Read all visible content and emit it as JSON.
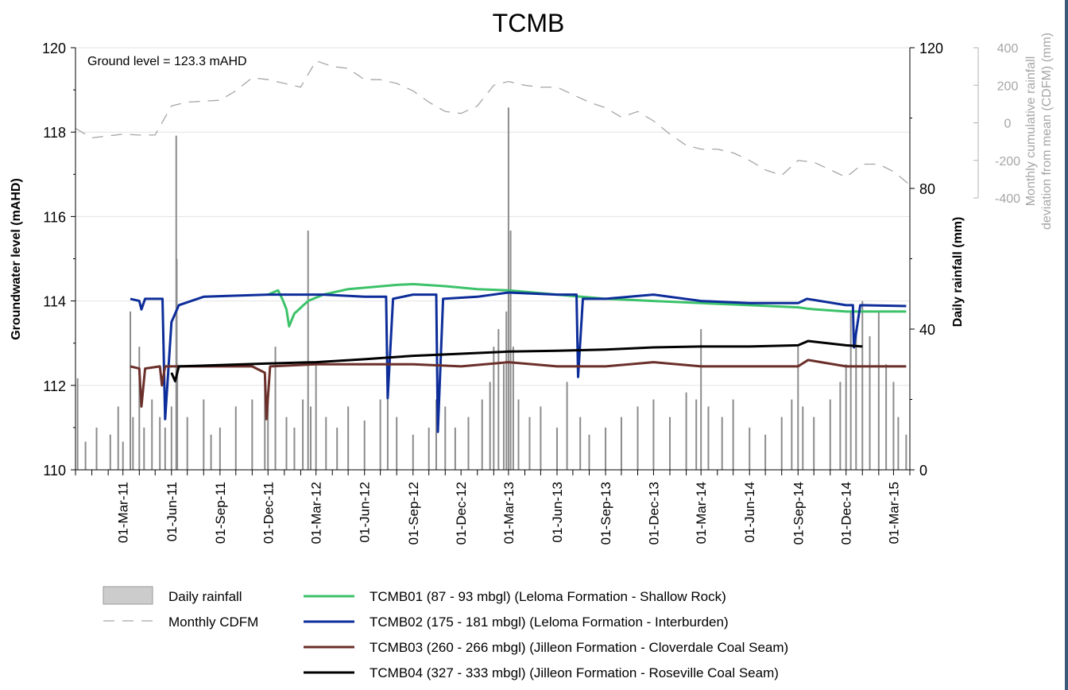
{
  "chart_data": {
    "type": "line",
    "title": "TCMB",
    "annotation": "Ground level = 123.3 mAHD",
    "y_left": {
      "label": "Groundwater level (mAHD)",
      "range": [
        110,
        120
      ],
      "ticks": [
        "110",
        "112",
        "114",
        "116",
        "118",
        "120"
      ]
    },
    "y_right": {
      "label": "Daily rainfall (mm)",
      "range": [
        0,
        120
      ],
      "ticks": [
        "0",
        "40",
        "80",
        "120"
      ]
    },
    "y_right2": {
      "label_lines": [
        "Monthly cumulative rainfall",
        "deviation from mean (CDFM) (mm)"
      ],
      "ticks": [
        "-400",
        "-200",
        "0",
        "200",
        "400"
      ]
    },
    "x_axis": {
      "range": [
        "2010-12-01",
        "2015-04-01"
      ],
      "tick_labels": [
        "01-Mar-11",
        "01-Jun-11",
        "01-Sep-11",
        "01-Dec-11",
        "01-Mar-12",
        "01-Jun-12",
        "01-Sep-12",
        "01-Dec-12",
        "01-Mar-13",
        "01-Jun-13",
        "01-Sep-13",
        "01-Dec-13",
        "01-Mar-14",
        "01-Jun-14",
        "01-Sep-14",
        "01-Dec-14",
        "01-Mar-15"
      ]
    },
    "grid": true,
    "legend": {
      "placement": "bottom",
      "items": [
        {
          "name": "Daily rainfall",
          "style": "bar",
          "color": "#a6a6a6"
        },
        {
          "name": "Monthly CDFM",
          "style": "dash",
          "color": "#a6a6a6"
        },
        {
          "name": "TCMB01 (87 - 93 mbgl) (Leloma Formation - Shallow Rock)",
          "style": "line",
          "color": "#3cc26a"
        },
        {
          "name": "TCMB02 (175 - 181 mbgl) (Leloma Formation - Interburden)",
          "style": "line",
          "color": "#0d2d9a"
        },
        {
          "name": "TCMB03 (260 - 266 mbgl) (Jilleon Formation - Cloverdale Coal Seam)",
          "style": "line",
          "color": "#6b2f2a"
        },
        {
          "name": "TCMB04 (327 - 333 mbgl) (Jilleon Formation - Roseville Coal Seam)",
          "style": "line",
          "color": "#000000"
        }
      ]
    },
    "series": [
      {
        "name": "TCMB01 (87 - 93 mbgl) (Leloma Formation - Shallow Rock)",
        "color": "#3cc26a",
        "points": [
          [
            "2011-12-01",
            114.15
          ],
          [
            "2011-12-20",
            114.25
          ],
          [
            "2011-12-28",
            114.05
          ],
          [
            "2012-01-05",
            113.8
          ],
          [
            "2012-01-10",
            113.4
          ],
          [
            "2012-01-20",
            113.7
          ],
          [
            "2012-02-15",
            114.0
          ],
          [
            "2012-03-15",
            114.15
          ],
          [
            "2012-05-01",
            114.28
          ],
          [
            "2012-08-01",
            114.38
          ],
          [
            "2012-09-01",
            114.4
          ],
          [
            "2012-11-01",
            114.35
          ],
          [
            "2013-01-01",
            114.28
          ],
          [
            "2013-03-01",
            114.25
          ],
          [
            "2013-06-01",
            114.15
          ],
          [
            "2013-09-01",
            114.05
          ],
          [
            "2013-12-01",
            114.0
          ],
          [
            "2014-03-01",
            113.95
          ],
          [
            "2014-06-01",
            113.9
          ],
          [
            "2014-09-01",
            113.85
          ],
          [
            "2014-09-18",
            113.82
          ],
          [
            "2014-10-05",
            113.8
          ],
          [
            "2014-12-01",
            113.75
          ],
          [
            "2015-03-01",
            113.75
          ],
          [
            "2015-03-25",
            113.75
          ]
        ]
      },
      {
        "name": "TCMB02 (175 - 181 mbgl) (Leloma Formation - Interburden)",
        "color": "#0d2d9a",
        "points": [
          [
            "2011-03-15",
            114.05
          ],
          [
            "2011-04-01",
            114.0
          ],
          [
            "2011-04-05",
            113.8
          ],
          [
            "2011-04-12",
            114.05
          ],
          [
            "2011-05-01",
            114.05
          ],
          [
            "2011-05-15",
            114.05
          ],
          [
            "2011-05-20",
            111.2
          ],
          [
            "2011-06-01",
            113.5
          ],
          [
            "2011-06-15",
            113.9
          ],
          [
            "2011-08-01",
            114.1
          ],
          [
            "2011-12-01",
            114.15
          ],
          [
            "2012-03-15",
            114.15
          ],
          [
            "2012-06-01",
            114.1
          ],
          [
            "2012-07-12",
            114.1
          ],
          [
            "2012-07-15",
            111.7
          ],
          [
            "2012-07-25",
            114.05
          ],
          [
            "2012-09-01",
            114.15
          ],
          [
            "2012-10-15",
            114.15
          ],
          [
            "2012-10-18",
            110.9
          ],
          [
            "2012-10-28",
            114.05
          ],
          [
            "2013-01-01",
            114.1
          ],
          [
            "2013-03-01",
            114.2
          ],
          [
            "2013-06-01",
            114.15
          ],
          [
            "2013-07-08",
            114.15
          ],
          [
            "2013-07-11",
            112.2
          ],
          [
            "2013-07-20",
            114.05
          ],
          [
            "2013-09-01",
            114.05
          ],
          [
            "2013-12-01",
            114.15
          ],
          [
            "2014-03-01",
            114.0
          ],
          [
            "2014-06-01",
            113.95
          ],
          [
            "2014-09-01",
            113.95
          ],
          [
            "2014-09-18",
            114.05
          ],
          [
            "2014-12-01",
            113.9
          ],
          [
            "2014-12-14",
            113.9
          ],
          [
            "2014-12-16",
            112.9
          ],
          [
            "2014-12-28",
            113.9
          ],
          [
            "2015-03-25",
            113.88
          ]
        ]
      },
      {
        "name": "TCMB03 (260 - 266 mbgl) (Jilleon Formation - Cloverdale Coal Seam)",
        "color": "#6b2f2a",
        "points": [
          [
            "2011-03-15",
            112.45
          ],
          [
            "2011-04-01",
            112.4
          ],
          [
            "2011-04-05",
            111.5
          ],
          [
            "2011-04-12",
            112.4
          ],
          [
            "2011-05-10",
            112.45
          ],
          [
            "2011-05-14",
            112.0
          ],
          [
            "2011-05-20",
            112.45
          ],
          [
            "2011-08-01",
            112.45
          ],
          [
            "2011-11-01",
            112.45
          ],
          [
            "2011-11-25",
            112.3
          ],
          [
            "2011-11-28",
            111.2
          ],
          [
            "2011-12-05",
            112.45
          ],
          [
            "2012-03-01",
            112.5
          ],
          [
            "2012-06-01",
            112.5
          ],
          [
            "2012-09-01",
            112.5
          ],
          [
            "2012-12-01",
            112.45
          ],
          [
            "2013-03-01",
            112.55
          ],
          [
            "2013-06-01",
            112.45
          ],
          [
            "2013-09-01",
            112.45
          ],
          [
            "2013-12-01",
            112.55
          ],
          [
            "2014-03-01",
            112.45
          ],
          [
            "2014-06-01",
            112.45
          ],
          [
            "2014-09-01",
            112.45
          ],
          [
            "2014-09-20",
            112.6
          ],
          [
            "2014-12-01",
            112.45
          ],
          [
            "2015-03-25",
            112.45
          ]
        ]
      },
      {
        "name": "TCMB04 (327 - 333 mbgl) (Jilleon Formation - Roseville Coal Seam)",
        "color": "#000000",
        "points": [
          [
            "2011-06-01",
            112.3
          ],
          [
            "2011-06-08",
            112.1
          ],
          [
            "2011-06-15",
            112.45
          ],
          [
            "2011-09-01",
            112.48
          ],
          [
            "2011-12-01",
            112.52
          ],
          [
            "2012-03-01",
            112.55
          ],
          [
            "2012-06-01",
            112.62
          ],
          [
            "2012-09-01",
            112.7
          ],
          [
            "2012-12-01",
            112.75
          ],
          [
            "2013-03-01",
            112.8
          ],
          [
            "2013-06-01",
            112.82
          ],
          [
            "2013-09-01",
            112.85
          ],
          [
            "2013-12-01",
            112.9
          ],
          [
            "2014-03-01",
            112.92
          ],
          [
            "2014-06-01",
            112.92
          ],
          [
            "2014-09-01",
            112.95
          ],
          [
            "2014-09-20",
            113.05
          ],
          [
            "2014-12-01",
            112.95
          ],
          [
            "2015-01-01",
            112.92
          ]
        ]
      }
    ],
    "cdfm": {
      "name": "Monthly CDFM",
      "color": "#a6a6a6",
      "points": [
        [
          "2010-12-01",
          -30
        ],
        [
          "2011-01-01",
          -80
        ],
        [
          "2011-02-01",
          -70
        ],
        [
          "2011-03-01",
          -60
        ],
        [
          "2011-04-01",
          -65
        ],
        [
          "2011-05-01",
          -65
        ],
        [
          "2011-06-01",
          90
        ],
        [
          "2011-07-01",
          110
        ],
        [
          "2011-08-01",
          115
        ],
        [
          "2011-09-01",
          120
        ],
        [
          "2011-10-01",
          170
        ],
        [
          "2011-11-01",
          240
        ],
        [
          "2011-12-01",
          230
        ],
        [
          "2012-01-01",
          210
        ],
        [
          "2012-02-01",
          190
        ],
        [
          "2012-03-01",
          330
        ],
        [
          "2012-04-01",
          300
        ],
        [
          "2012-05-01",
          290
        ],
        [
          "2012-06-01",
          230
        ],
        [
          "2012-07-01",
          230
        ],
        [
          "2012-08-01",
          210
        ],
        [
          "2012-09-01",
          170
        ],
        [
          "2012-10-01",
          110
        ],
        [
          "2012-11-01",
          60
        ],
        [
          "2012-12-01",
          50
        ],
        [
          "2013-01-01",
          90
        ],
        [
          "2013-02-01",
          200
        ],
        [
          "2013-03-01",
          220
        ],
        [
          "2013-04-01",
          200
        ],
        [
          "2013-05-01",
          190
        ],
        [
          "2013-06-01",
          190
        ],
        [
          "2013-07-01",
          150
        ],
        [
          "2013-08-01",
          110
        ],
        [
          "2013-09-01",
          80
        ],
        [
          "2013-10-01",
          30
        ],
        [
          "2013-11-01",
          60
        ],
        [
          "2013-12-01",
          10
        ],
        [
          "2014-01-01",
          -60
        ],
        [
          "2014-02-01",
          -120
        ],
        [
          "2014-03-01",
          -140
        ],
        [
          "2014-04-01",
          -140
        ],
        [
          "2014-05-01",
          -160
        ],
        [
          "2014-06-01",
          -200
        ],
        [
          "2014-07-01",
          -250
        ],
        [
          "2014-08-01",
          -280
        ],
        [
          "2014-09-01",
          -200
        ],
        [
          "2014-10-01",
          -210
        ],
        [
          "2014-11-01",
          -250
        ],
        [
          "2014-12-01",
          -290
        ],
        [
          "2015-01-01",
          -220
        ],
        [
          "2015-02-01",
          -220
        ],
        [
          "2015-03-01",
          -260
        ],
        [
          "2015-04-01",
          -330
        ]
      ]
    },
    "rainfall": {
      "name": "Daily rainfall",
      "color": "#a6a6a6",
      "points": [
        [
          "2010-12-05",
          26
        ],
        [
          "2010-12-20",
          8
        ],
        [
          "2011-01-10",
          12
        ],
        [
          "2011-02-05",
          10
        ],
        [
          "2011-02-20",
          18
        ],
        [
          "2011-03-01",
          8
        ],
        [
          "2011-03-15",
          45
        ],
        [
          "2011-03-20",
          15
        ],
        [
          "2011-04-01",
          35
        ],
        [
          "2011-04-10",
          12
        ],
        [
          "2011-04-25",
          20
        ],
        [
          "2011-05-10",
          15
        ],
        [
          "2011-05-20",
          12
        ],
        [
          "2011-06-01",
          18
        ],
        [
          "2011-06-10",
          95
        ],
        [
          "2011-06-11",
          60
        ],
        [
          "2011-06-12",
          30
        ],
        [
          "2011-07-01",
          15
        ],
        [
          "2011-08-01",
          20
        ],
        [
          "2011-08-15",
          10
        ],
        [
          "2011-09-01",
          12
        ],
        [
          "2011-10-01",
          18
        ],
        [
          "2011-11-01",
          20
        ],
        [
          "2011-11-25",
          25
        ],
        [
          "2011-12-01",
          22
        ],
        [
          "2011-12-15",
          35
        ],
        [
          "2012-01-05",
          15
        ],
        [
          "2012-01-20",
          12
        ],
        [
          "2012-02-05",
          20
        ],
        [
          "2012-02-15",
          68
        ],
        [
          "2012-02-20",
          18
        ],
        [
          "2012-03-01",
          30
        ],
        [
          "2012-03-20",
          15
        ],
        [
          "2012-04-10",
          12
        ],
        [
          "2012-05-01",
          18
        ],
        [
          "2012-06-01",
          14
        ],
        [
          "2012-07-01",
          20
        ],
        [
          "2012-07-15",
          22
        ],
        [
          "2012-08-01",
          15
        ],
        [
          "2012-09-01",
          10
        ],
        [
          "2012-10-01",
          12
        ],
        [
          "2012-10-15",
          20
        ],
        [
          "2012-11-01",
          18
        ],
        [
          "2012-11-20",
          12
        ],
        [
          "2012-12-15",
          15
        ],
        [
          "2013-01-10",
          20
        ],
        [
          "2013-01-25",
          25
        ],
        [
          "2013-02-01",
          35
        ],
        [
          "2013-02-10",
          40
        ],
        [
          "2013-02-20",
          30
        ],
        [
          "2013-02-25",
          45
        ],
        [
          "2013-03-01",
          103
        ],
        [
          "2013-03-05",
          68
        ],
        [
          "2013-03-10",
          35
        ],
        [
          "2013-03-20",
          20
        ],
        [
          "2013-04-10",
          15
        ],
        [
          "2013-05-01",
          18
        ],
        [
          "2013-06-01",
          12
        ],
        [
          "2013-06-20",
          25
        ],
        [
          "2013-07-15",
          15
        ],
        [
          "2013-08-01",
          10
        ],
        [
          "2013-09-01",
          12
        ],
        [
          "2013-10-01",
          15
        ],
        [
          "2013-11-01",
          18
        ],
        [
          "2013-12-01",
          20
        ],
        [
          "2014-01-01",
          15
        ],
        [
          "2014-02-01",
          22
        ],
        [
          "2014-02-20",
          20
        ],
        [
          "2014-03-01",
          40
        ],
        [
          "2014-03-15",
          18
        ],
        [
          "2014-04-10",
          15
        ],
        [
          "2014-05-01",
          20
        ],
        [
          "2014-06-01",
          12
        ],
        [
          "2014-07-01",
          10
        ],
        [
          "2014-08-01",
          15
        ],
        [
          "2014-08-20",
          20
        ],
        [
          "2014-09-01",
          35
        ],
        [
          "2014-09-10",
          18
        ],
        [
          "2014-10-01",
          15
        ],
        [
          "2014-11-01",
          20
        ],
        [
          "2014-11-20",
          25
        ],
        [
          "2014-12-01",
          30
        ],
        [
          "2014-12-10",
          45
        ],
        [
          "2014-12-20",
          40
        ],
        [
          "2015-01-01",
          48
        ],
        [
          "2015-01-15",
          38
        ],
        [
          "2015-02-01",
          45
        ],
        [
          "2015-02-15",
          30
        ],
        [
          "2015-03-01",
          25
        ],
        [
          "2015-03-10",
          15
        ],
        [
          "2015-03-25",
          10
        ]
      ]
    }
  }
}
